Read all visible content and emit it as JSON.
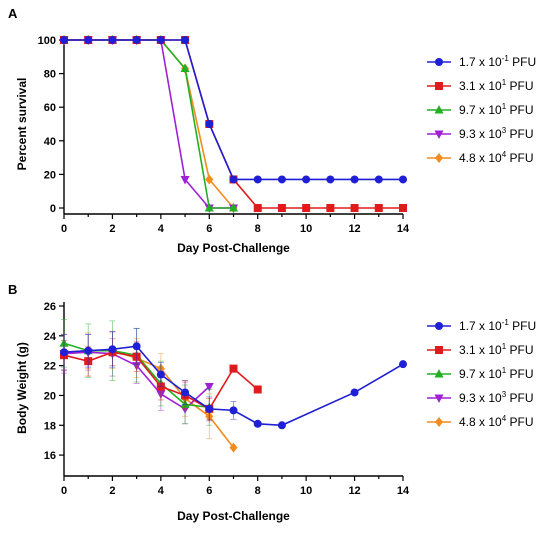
{
  "chart_data": [
    {
      "panel_label": "A",
      "type": "line",
      "xlabel": "Day Post-Challenge",
      "ylabel": "Percent survival",
      "xlim": [
        0,
        14
      ],
      "ylim": [
        0,
        100
      ],
      "xticks": [
        0,
        2,
        4,
        6,
        8,
        10,
        12,
        14
      ],
      "yticks": [
        0,
        20,
        40,
        60,
        80,
        100
      ],
      "legend_position": "right",
      "series": [
        {
          "name_base": "1.7 x 10",
          "name_exp": "-1",
          "name_unit": " PFU",
          "color": "#1f1fd6",
          "marker": "circle",
          "x": [
            0,
            1,
            2,
            3,
            4,
            5,
            6,
            7,
            8,
            9,
            10,
            11,
            12,
            13,
            14
          ],
          "y": [
            100,
            100,
            100,
            100,
            100,
            100,
            50,
            17,
            17,
            17,
            17,
            17,
            17,
            17,
            17
          ]
        },
        {
          "name_base": "3.1 x 10",
          "name_exp": "1",
          "name_unit": " PFU",
          "color": "#e01b1b",
          "marker": "square",
          "x": [
            0,
            1,
            2,
            3,
            4,
            5,
            6,
            7,
            8,
            9,
            10,
            11,
            12,
            13,
            14
          ],
          "y": [
            100,
            100,
            100,
            100,
            100,
            100,
            50,
            17,
            0,
            0,
            0,
            0,
            0,
            0,
            0
          ]
        },
        {
          "name_base": "9.7 x 10",
          "name_exp": "1",
          "name_unit": " PFU",
          "color": "#22b022",
          "marker": "triangle-up",
          "x": [
            0,
            1,
            2,
            3,
            4,
            5,
            6,
            7
          ],
          "y": [
            100,
            100,
            100,
            100,
            100,
            83,
            0,
            0
          ]
        },
        {
          "name_base": "9.3 x 10",
          "name_exp": "3",
          "name_unit": " PFU",
          "color": "#a020d8",
          "marker": "triangle-down",
          "x": [
            0,
            1,
            2,
            3,
            4,
            5,
            6,
            7
          ],
          "y": [
            100,
            100,
            100,
            100,
            100,
            17,
            0,
            0
          ]
        },
        {
          "name_base": "4.8 x 10",
          "name_exp": "4",
          "name_unit": " PFU",
          "color": "#f28c1c",
          "marker": "diamond",
          "x": [
            0,
            1,
            2,
            3,
            4,
            5,
            6,
            7
          ],
          "y": [
            100,
            100,
            100,
            100,
            100,
            83,
            17,
            0
          ]
        }
      ]
    },
    {
      "panel_label": "B",
      "type": "line",
      "xlabel": "Day Post-Challenge",
      "ylabel": "Body Weight (g)",
      "xlim": [
        0,
        14
      ],
      "ylim": [
        15,
        26
      ],
      "xticks": [
        0,
        2,
        4,
        6,
        8,
        10,
        12,
        14
      ],
      "yticks": [
        16,
        18,
        20,
        22,
        24,
        26
      ],
      "legend_position": "right",
      "series": [
        {
          "name_base": "1.7 x 10",
          "name_exp": "-1",
          "name_unit": " PFU",
          "color": "#1f1fd6",
          "marker": "circle",
          "x": [
            0,
            1,
            2,
            3,
            4,
            5,
            6,
            7,
            8,
            9,
            12,
            14
          ],
          "y": [
            22.9,
            23.0,
            23.1,
            23.3,
            21.4,
            20.2,
            19.1,
            19.0,
            18.1,
            18.0,
            20.2,
            22.1
          ],
          "err": [
            1.2,
            1.1,
            1.2,
            1.2,
            0.8,
            0.8,
            0.8,
            0.6,
            0,
            0,
            0,
            0
          ]
        },
        {
          "name_base": "3.1 x 10",
          "name_exp": "1",
          "name_unit": " PFU",
          "color": "#e01b1b",
          "marker": "square",
          "x": [
            0,
            1,
            2,
            3,
            4,
            5,
            6,
            7,
            8
          ],
          "y": [
            22.7,
            22.3,
            22.9,
            22.6,
            20.6,
            20.0,
            19.1,
            21.8,
            20.4
          ],
          "err": [
            1.0,
            1.0,
            0.9,
            1.0,
            0.9,
            0.9,
            0.7,
            0,
            0
          ]
        },
        {
          "name_base": "9.7 x 10",
          "name_exp": "1",
          "name_unit": " PFU",
          "color": "#22b022",
          "marker": "triangle-up",
          "x": [
            0,
            1,
            2,
            3,
            4,
            5,
            6
          ],
          "y": [
            23.5,
            23.0,
            23.0,
            22.7,
            20.8,
            19.4,
            19.2
          ],
          "err": [
            1.6,
            1.8,
            2.0,
            1.8,
            1.5,
            1.3,
            1.2
          ]
        },
        {
          "name_base": "9.3 x 10",
          "name_exp": "3",
          "name_unit": " PFU",
          "color": "#a020d8",
          "marker": "triangle-down",
          "x": [
            0,
            1,
            2,
            3,
            4,
            5,
            6
          ],
          "y": [
            22.8,
            22.9,
            22.8,
            22.0,
            20.1,
            19.1,
            20.6
          ],
          "err": [
            1.3,
            1.2,
            1.5,
            1.2,
            1.1,
            1.0,
            0
          ]
        },
        {
          "name_base": "4.8 x 10",
          "name_exp": "4",
          "name_unit": " PFU",
          "color": "#f28c1c",
          "marker": "diamond",
          "x": [
            0,
            1,
            2,
            3,
            4,
            5,
            6,
            7
          ],
          "y": [
            22.9,
            23.0,
            23.0,
            22.5,
            21.8,
            19.8,
            18.6,
            16.5
          ],
          "err": [
            1.2,
            1.2,
            1.2,
            1.3,
            1.0,
            1.2,
            1.5,
            0
          ]
        }
      ]
    }
  ]
}
